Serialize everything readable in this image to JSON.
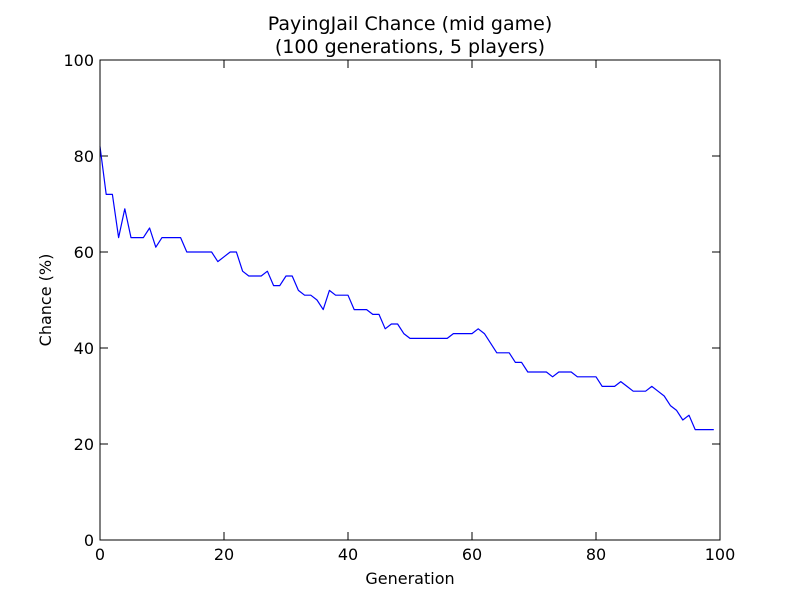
{
  "chart_data": {
    "type": "line",
    "title": "PayingJail Chance (mid game)",
    "subtitle": "(100 generations, 5 players)",
    "xlabel": "Generation",
    "ylabel": "Chance (%)",
    "xlim": [
      0,
      100
    ],
    "ylim": [
      0,
      100
    ],
    "x_ticks": [
      0,
      20,
      40,
      60,
      80,
      100
    ],
    "y_ticks": [
      0,
      20,
      40,
      60,
      80,
      100
    ],
    "x_tick_labels": [
      "0",
      "20",
      "40",
      "60",
      "80",
      "100"
    ],
    "y_tick_labels": [
      "0",
      "20",
      "40",
      "60",
      "80",
      "100"
    ],
    "grid": false,
    "colors": {
      "series": "#0000ff",
      "axes": "#000000",
      "background": "#ffffff"
    },
    "series": [
      {
        "x": [
          0,
          1,
          2,
          3,
          4,
          5,
          6,
          7,
          8,
          9,
          10,
          11,
          12,
          13,
          14,
          15,
          16,
          17,
          18,
          19,
          20,
          21,
          22,
          23,
          24,
          25,
          26,
          27,
          28,
          29,
          30,
          31,
          32,
          33,
          34,
          35,
          36,
          37,
          38,
          39,
          40,
          41,
          42,
          43,
          44,
          45,
          46,
          47,
          48,
          49,
          50,
          51,
          52,
          53,
          54,
          55,
          56,
          57,
          58,
          59,
          60,
          61,
          62,
          63,
          64,
          65,
          66,
          67,
          68,
          69,
          70,
          71,
          72,
          73,
          74,
          75,
          76,
          77,
          78,
          79,
          80,
          81,
          82,
          83,
          84,
          85,
          86,
          87,
          88,
          89,
          90,
          91,
          92,
          93,
          94,
          95,
          96,
          97,
          98,
          99
        ],
        "values": [
          82,
          72,
          72,
          63,
          69,
          63,
          63,
          63,
          65,
          61,
          63,
          63,
          63,
          63,
          60,
          60,
          60,
          60,
          60,
          58,
          59,
          60,
          60,
          56,
          55,
          55,
          55,
          56,
          53,
          53,
          55,
          55,
          52,
          51,
          51,
          50,
          48,
          52,
          51,
          51,
          51,
          48,
          48,
          48,
          47,
          47,
          44,
          45,
          45,
          43,
          42,
          42,
          42,
          42,
          42,
          42,
          42,
          43,
          43,
          43,
          43,
          44,
          43,
          41,
          39,
          39,
          39,
          37,
          37,
          35,
          35,
          35,
          35,
          34,
          35,
          35,
          35,
          34,
          34,
          34,
          34,
          32,
          32,
          32,
          33,
          32,
          31,
          31,
          31,
          32,
          31,
          30,
          28,
          27,
          25,
          26,
          23,
          23,
          23,
          23
        ]
      }
    ]
  }
}
